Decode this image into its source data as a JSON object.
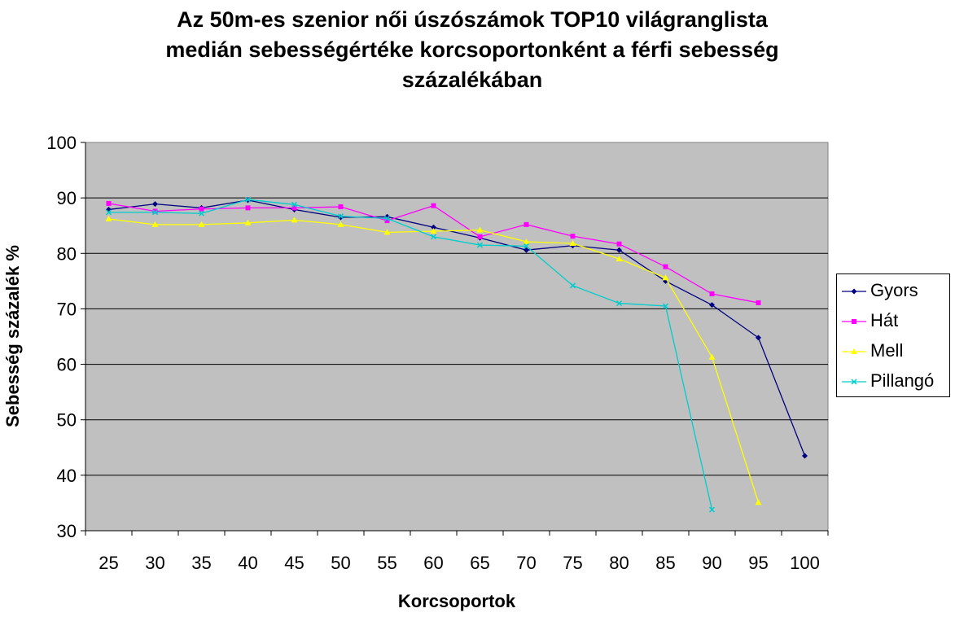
{
  "chart_data": {
    "type": "line",
    "title_lines": [
      "Az 50m-es szenior női úszószámok TOP10 világranglista",
      "medián sebességértéke korcsoportonként a férfi sebesség",
      "százalékában"
    ],
    "xlabel": "Korcsoportok",
    "ylabel": "Sebesség százalék %",
    "categories": [
      "25",
      "30",
      "35",
      "40",
      "45",
      "50",
      "55",
      "60",
      "65",
      "70",
      "75",
      "80",
      "85",
      "90",
      "95",
      "100"
    ],
    "ylim": [
      30,
      100
    ],
    "yticks": [
      30,
      40,
      50,
      60,
      70,
      80,
      90,
      100
    ],
    "grid": true,
    "legend_position": "right",
    "plot_background": "#C0C0C0",
    "series": [
      {
        "name": "Gyors",
        "color": "#000080",
        "marker": "diamond",
        "values": [
          87.9,
          88.9,
          88.2,
          89.6,
          87.9,
          86.5,
          86.6,
          84.7,
          82.8,
          80.6,
          81.4,
          80.6,
          75.0,
          70.7,
          64.8,
          43.5
        ]
      },
      {
        "name": "Hát",
        "color": "#FF00FF",
        "marker": "square",
        "values": [
          89.0,
          87.6,
          88.0,
          88.2,
          88.2,
          88.4,
          85.9,
          88.6,
          83.0,
          85.2,
          83.1,
          81.7,
          77.6,
          72.7,
          71.1,
          null
        ]
      },
      {
        "name": "Mell",
        "color": "#FFFF00",
        "marker": "triangle",
        "values": [
          86.2,
          85.2,
          85.2,
          85.5,
          86.0,
          85.2,
          83.8,
          84.0,
          84.2,
          82.1,
          81.8,
          79.0,
          75.6,
          61.3,
          35.1,
          null
        ]
      },
      {
        "name": "Pillangó",
        "color": "#00CCCC",
        "marker": "x",
        "values": [
          87.4,
          87.4,
          87.2,
          89.7,
          88.8,
          86.7,
          86.3,
          83.0,
          81.5,
          81.3,
          74.2,
          71.0,
          70.5,
          33.8,
          null,
          null
        ]
      }
    ]
  }
}
